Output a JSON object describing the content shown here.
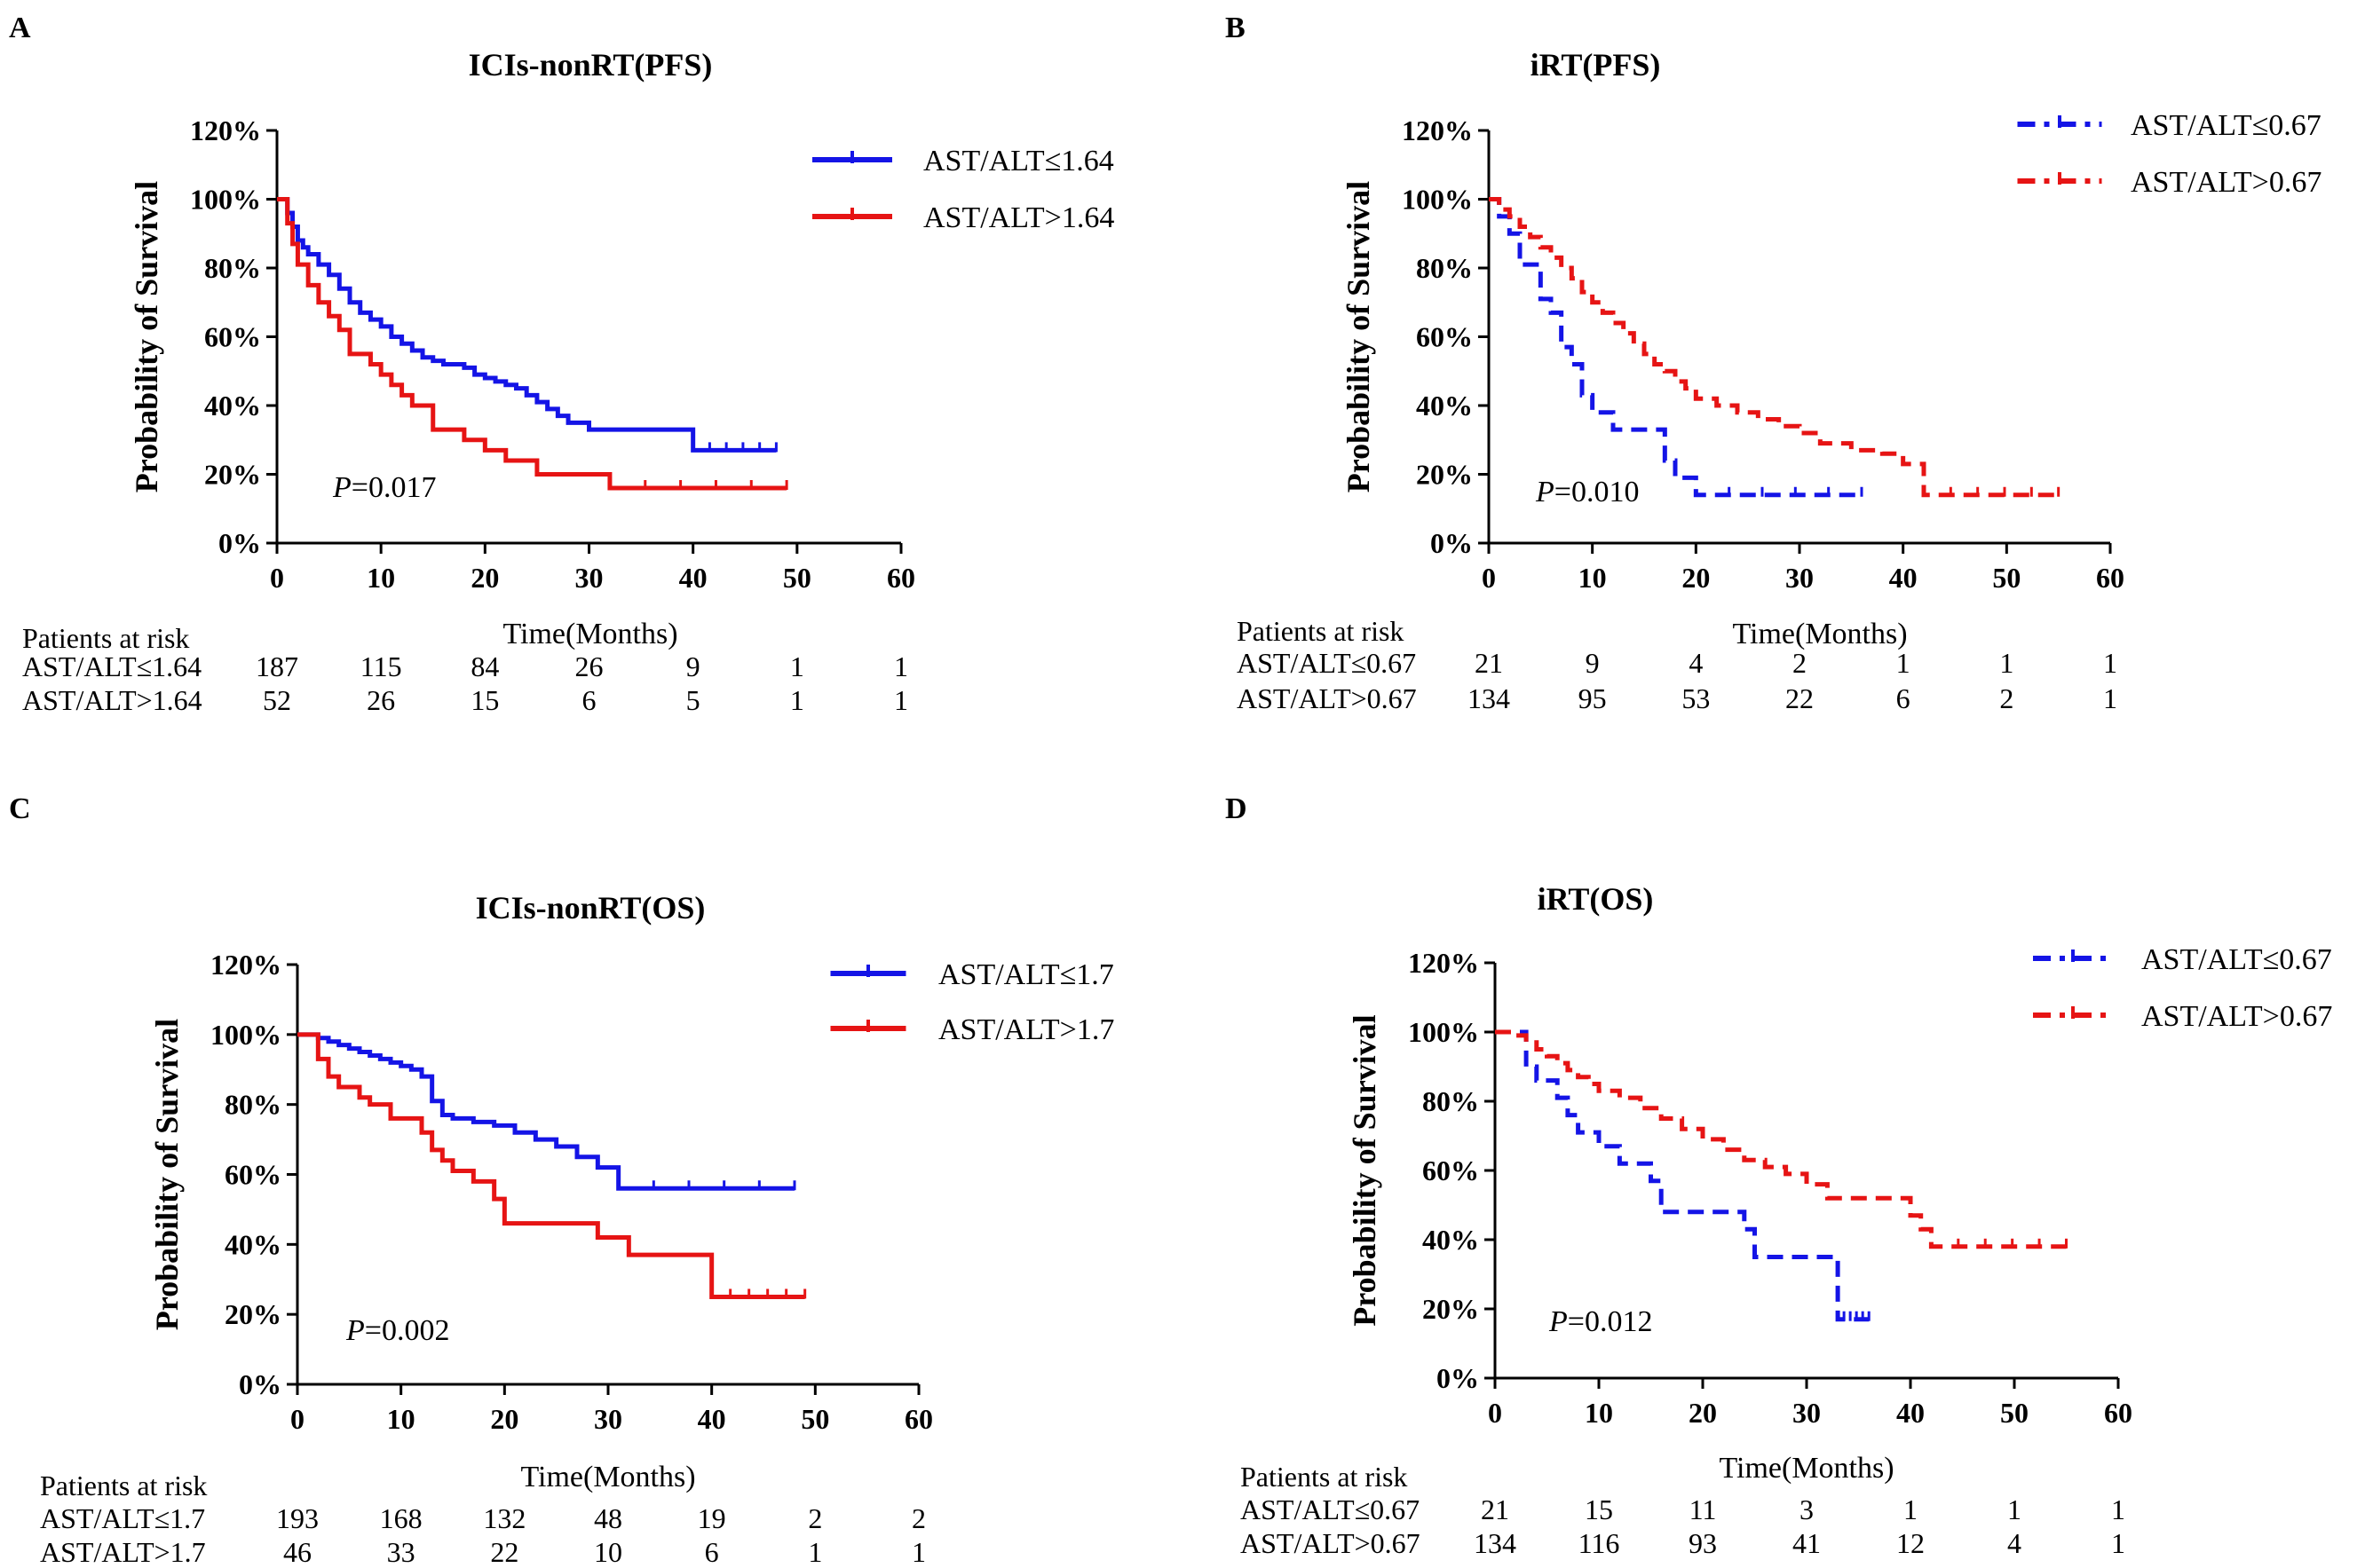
{
  "colors": {
    "blue": "#1414e6",
    "red": "#e61414",
    "axis": "#000000"
  },
  "risk_title": "Patients at risk",
  "chart_data": [
    {
      "type": "line",
      "panel": "A",
      "title": "ICIs-nonRT(PFS)",
      "xlabel": "Time(Months)",
      "ylabel": "Probability of Survival",
      "xlim": [
        0,
        60
      ],
      "ylim": [
        0,
        120
      ],
      "xticks": [
        "0",
        "10",
        "20",
        "30",
        "40",
        "50",
        "60"
      ],
      "yticks": [
        "0%",
        "20%",
        "40%",
        "60%",
        "80%",
        "100%",
        "120%"
      ],
      "pvalue_label": "P",
      "pvalue": "=0.017",
      "dashed": false,
      "series": [
        {
          "name": "AST/ALT≤1.64",
          "color": "#1414e6",
          "x": [
            0,
            1,
            1.5,
            2,
            2.5,
            3,
            4,
            5,
            6,
            7,
            8,
            9,
            10,
            11,
            12,
            13,
            14,
            15,
            16,
            18,
            19,
            20,
            21,
            22,
            23,
            24,
            25,
            26,
            27,
            28,
            30,
            40,
            48
          ],
          "y": [
            100,
            96,
            92,
            88,
            86,
            84,
            81,
            78,
            74,
            70,
            67,
            65,
            63,
            60,
            58,
            56,
            54,
            53,
            52,
            51,
            49,
            48,
            47,
            46,
            45,
            43,
            41,
            39,
            37,
            35,
            33,
            27,
            27
          ]
        },
        {
          "name": "AST/ALT>1.64",
          "color": "#e61414",
          "x": [
            0,
            1,
            1.5,
            2,
            3,
            4,
            5,
            6,
            7,
            9,
            10,
            11,
            12,
            13,
            15,
            18,
            20,
            22,
            25,
            32,
            49
          ],
          "y": [
            100,
            93,
            87,
            81,
            75,
            70,
            66,
            62,
            55,
            52,
            49,
            46,
            43,
            40,
            33,
            30,
            27,
            24,
            20,
            16,
            16
          ]
        }
      ],
      "risk_rows": [
        {
          "label": "AST/ALT≤1.64",
          "values": [
            "187",
            "115",
            "84",
            "26",
            "9",
            "1",
            "1"
          ]
        },
        {
          "label": "AST/ALT>1.64",
          "values": [
            "52",
            "26",
            "15",
            "6",
            "5",
            "1",
            "1"
          ]
        }
      ]
    },
    {
      "type": "line",
      "panel": "B",
      "title": "iRT(PFS)",
      "xlabel": "Time(Months)",
      "ylabel": "Probability of Survival",
      "xlim": [
        0,
        60
      ],
      "ylim": [
        0,
        120
      ],
      "xticks": [
        "0",
        "10",
        "20",
        "30",
        "40",
        "50",
        "60"
      ],
      "yticks": [
        "0%",
        "20%",
        "40%",
        "60%",
        "80%",
        "100%",
        "120%"
      ],
      "pvalue_label": "P",
      "pvalue": "=0.010",
      "dashed": true,
      "series": [
        {
          "name": "AST/ALT≤0.67",
          "color": "#1414e6",
          "x": [
            0,
            1,
            2,
            3,
            5,
            6,
            7,
            8,
            9,
            10,
            12,
            15,
            17,
            18,
            20,
            36
          ],
          "y": [
            100,
            95,
            90,
            81,
            71,
            67,
            57,
            52,
            43,
            38,
            33,
            33,
            24,
            19,
            14,
            14
          ]
        },
        {
          "name": "AST/ALT>0.67",
          "color": "#e61414",
          "x": [
            0,
            1,
            2,
            3,
            4,
            5,
            6,
            7,
            8,
            9,
            10,
            11,
            12,
            13,
            14,
            15,
            16,
            17,
            18,
            19,
            20,
            22,
            24,
            26,
            28,
            30,
            32,
            35,
            38,
            40,
            42,
            55
          ],
          "y": [
            100,
            97,
            95,
            92,
            89,
            86,
            83,
            80,
            77,
            73,
            70,
            67,
            64,
            61,
            58,
            55,
            52,
            50,
            47,
            45,
            42,
            40,
            38,
            36,
            34,
            32,
            29,
            27,
            26,
            23,
            14,
            14
          ]
        }
      ],
      "risk_rows": [
        {
          "label": "AST/ALT≤0.67",
          "values": [
            "21",
            "9",
            "4",
            "2",
            "1",
            "1",
            "1"
          ]
        },
        {
          "label": "AST/ALT>0.67",
          "values": [
            "134",
            "95",
            "53",
            "22",
            "6",
            "2",
            "1"
          ]
        }
      ]
    },
    {
      "type": "line",
      "panel": "C",
      "title": "ICIs-nonRT(OS)",
      "xlabel": "Time(Months)",
      "ylabel": "Probability of Survival",
      "xlim": [
        0,
        60
      ],
      "ylim": [
        0,
        120
      ],
      "xticks": [
        "0",
        "10",
        "20",
        "30",
        "40",
        "50",
        "60"
      ],
      "yticks": [
        "0%",
        "20%",
        "40%",
        "60%",
        "80%",
        "100%",
        "120%"
      ],
      "pvalue_label": "P",
      "pvalue": "=0.002",
      "dashed": false,
      "series": [
        {
          "name": "AST/ALT≤1.7",
          "color": "#1414e6",
          "x": [
            0,
            2,
            3,
            4,
            5,
            6,
            7,
            8,
            9,
            10,
            11,
            12,
            13,
            14,
            15,
            17,
            19,
            21,
            23,
            25,
            27,
            29,
            31,
            48
          ],
          "y": [
            100,
            99,
            98,
            97,
            96,
            95,
            94,
            93,
            92,
            91,
            90,
            88,
            81,
            77,
            76,
            75,
            74,
            72,
            70,
            68,
            65,
            62,
            56,
            56
          ]
        },
        {
          "name": "AST/ALT>1.7",
          "color": "#e61414",
          "x": [
            0,
            2,
            3,
            4,
            6,
            7,
            9,
            12,
            13,
            14,
            15,
            17,
            19,
            20,
            26,
            29,
            32,
            40,
            49
          ],
          "y": [
            100,
            93,
            88,
            85,
            82,
            80,
            76,
            72,
            67,
            64,
            61,
            58,
            53,
            46,
            46,
            42,
            37,
            25,
            25
          ]
        }
      ],
      "risk_rows": [
        {
          "label": "AST/ALT≤1.7",
          "values": [
            "193",
            "168",
            "132",
            "48",
            "19",
            "2",
            "2"
          ]
        },
        {
          "label": "AST/ALT>1.7",
          "values": [
            "46",
            "33",
            "22",
            "10",
            "6",
            "1",
            "1"
          ]
        }
      ]
    },
    {
      "type": "line",
      "panel": "D",
      "title": "iRT(OS)",
      "xlabel": "Time(Months)",
      "ylabel": "Probability of Survival",
      "xlim": [
        0,
        60
      ],
      "ylim": [
        0,
        120
      ],
      "xticks": [
        "0",
        "10",
        "20",
        "30",
        "40",
        "50",
        "60"
      ],
      "yticks": [
        "0%",
        "20%",
        "40%",
        "60%",
        "80%",
        "100%",
        "120%"
      ],
      "pvalue_label": "P",
      "pvalue": "=0.012",
      "dashed": true,
      "series": [
        {
          "name": "AST/ALT≤0.67",
          "color": "#1414e6",
          "x": [
            0,
            3,
            4,
            6,
            7,
            8,
            10,
            12,
            15,
            16,
            24,
            25,
            33,
            36
          ],
          "y": [
            100,
            90,
            86,
            81,
            76,
            71,
            67,
            62,
            57,
            48,
            43,
            35,
            17,
            17
          ]
        },
        {
          "name": "AST/ALT>0.67",
          "color": "#e61414",
          "x": [
            0,
            2,
            3,
            4,
            5,
            6,
            7,
            8,
            9,
            10,
            12,
            14,
            16,
            18,
            20,
            22,
            24,
            26,
            28,
            30,
            32,
            39,
            40,
            41,
            42,
            55
          ],
          "y": [
            100,
            99,
            97,
            95,
            93,
            91,
            89,
            87,
            85,
            83,
            81,
            78,
            75,
            72,
            69,
            66,
            63,
            61,
            59,
            56,
            52,
            52,
            47,
            43,
            38,
            38
          ]
        }
      ],
      "risk_rows": [
        {
          "label": "AST/ALT≤0.67",
          "values": [
            "21",
            "15",
            "11",
            "3",
            "1",
            "1",
            "1"
          ]
        },
        {
          "label": "AST/ALT>0.67",
          "values": [
            "134",
            "116",
            "93",
            "41",
            "12",
            "4",
            "1"
          ]
        }
      ]
    }
  ]
}
